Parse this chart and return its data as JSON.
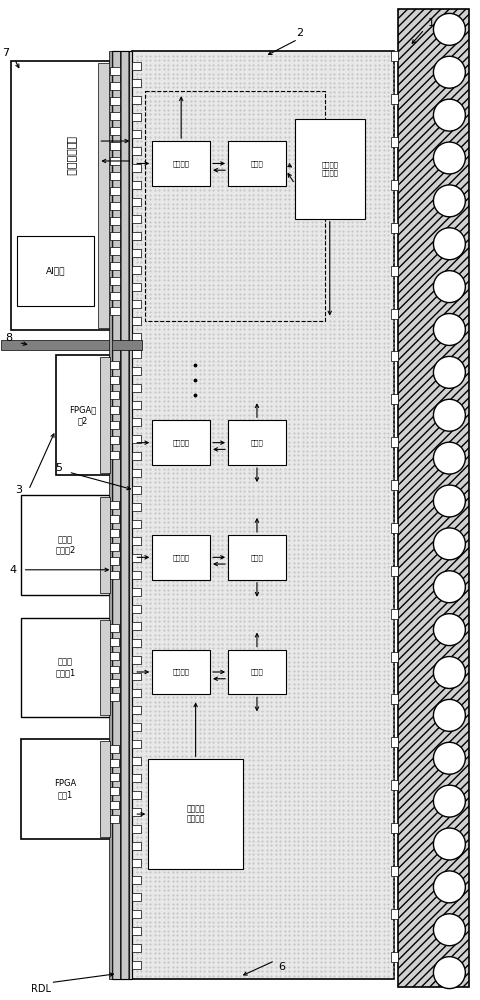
{
  "ai_chip_label": "人工智能裸片",
  "ai_engine_label": "AI引擎",
  "fpga1_label": "FPGA\n裸片1",
  "fpga2_label": "FPGA裸\n片2",
  "func1_label": "裸片功\n能模块1",
  "func2_label": "裸片功\n能模块2",
  "net_iface_label": "网络接口",
  "router_label": "路由器",
  "si_conn_label": "硅连接层\n功能模块",
  "intercon_label": "传输框架\n互连框架",
  "rdl_label": "RDL",
  "label1": "1",
  "label2": "2",
  "label3": "3",
  "label4": "4",
  "label5": "5",
  "label6": "6",
  "label7": "7",
  "label8": "8"
}
